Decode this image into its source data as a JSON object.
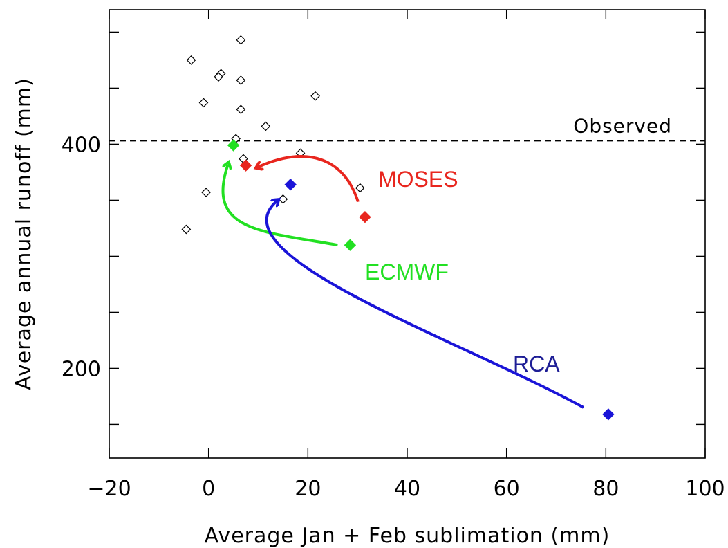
{
  "chart_data": {
    "type": "scatter",
    "title": "",
    "xlabel": "Average Jan + Feb sublimation (mm)",
    "ylabel": "Average annual runoff (mm)",
    "xlim": [
      -20,
      100
    ],
    "ylim": [
      120,
      520
    ],
    "xticks": [
      -20,
      0,
      20,
      40,
      60,
      80,
      100
    ],
    "yticks_labeled": [
      200,
      400
    ],
    "yticks_minor": [
      150,
      250,
      300,
      350,
      450,
      500
    ],
    "observed": {
      "label": "Observed",
      "y": 403
    },
    "scatter_points": [
      {
        "x": 6.5,
        "y": 493
      },
      {
        "x": -3.5,
        "y": 475
      },
      {
        "x": 2.5,
        "y": 463
      },
      {
        "x": 2.0,
        "y": 460
      },
      {
        "x": 6.5,
        "y": 457
      },
      {
        "x": 21.5,
        "y": 443
      },
      {
        "x": -1.0,
        "y": 437
      },
      {
        "x": 6.5,
        "y": 431
      },
      {
        "x": 11.5,
        "y": 416
      },
      {
        "x": 5.5,
        "y": 405
      },
      {
        "x": 18.5,
        "y": 392
      },
      {
        "x": 7.0,
        "y": 387
      },
      {
        "x": 30.5,
        "y": 361
      },
      {
        "x": -0.5,
        "y": 357
      },
      {
        "x": 15.0,
        "y": 351
      },
      {
        "x": -4.5,
        "y": 324
      }
    ],
    "series": [
      {
        "name": "MOSES",
        "color": "#e8261e",
        "from": {
          "x": 31.5,
          "y": 335
        },
        "to": {
          "x": 7.5,
          "y": 381
        }
      },
      {
        "name": "ECMWF",
        "color": "#22e022",
        "from": {
          "x": 28.5,
          "y": 310
        },
        "to": {
          "x": 5.0,
          "y": 399
        }
      },
      {
        "name": "RCA",
        "color": "#1a14d8",
        "from": {
          "x": 80.5,
          "y": 159
        },
        "to": {
          "x": 16.5,
          "y": 364
        }
      }
    ]
  },
  "label_colors": {
    "MOSES": "#e8261e",
    "ECMWF": "#22e022",
    "RCA": "#1e1e96"
  }
}
